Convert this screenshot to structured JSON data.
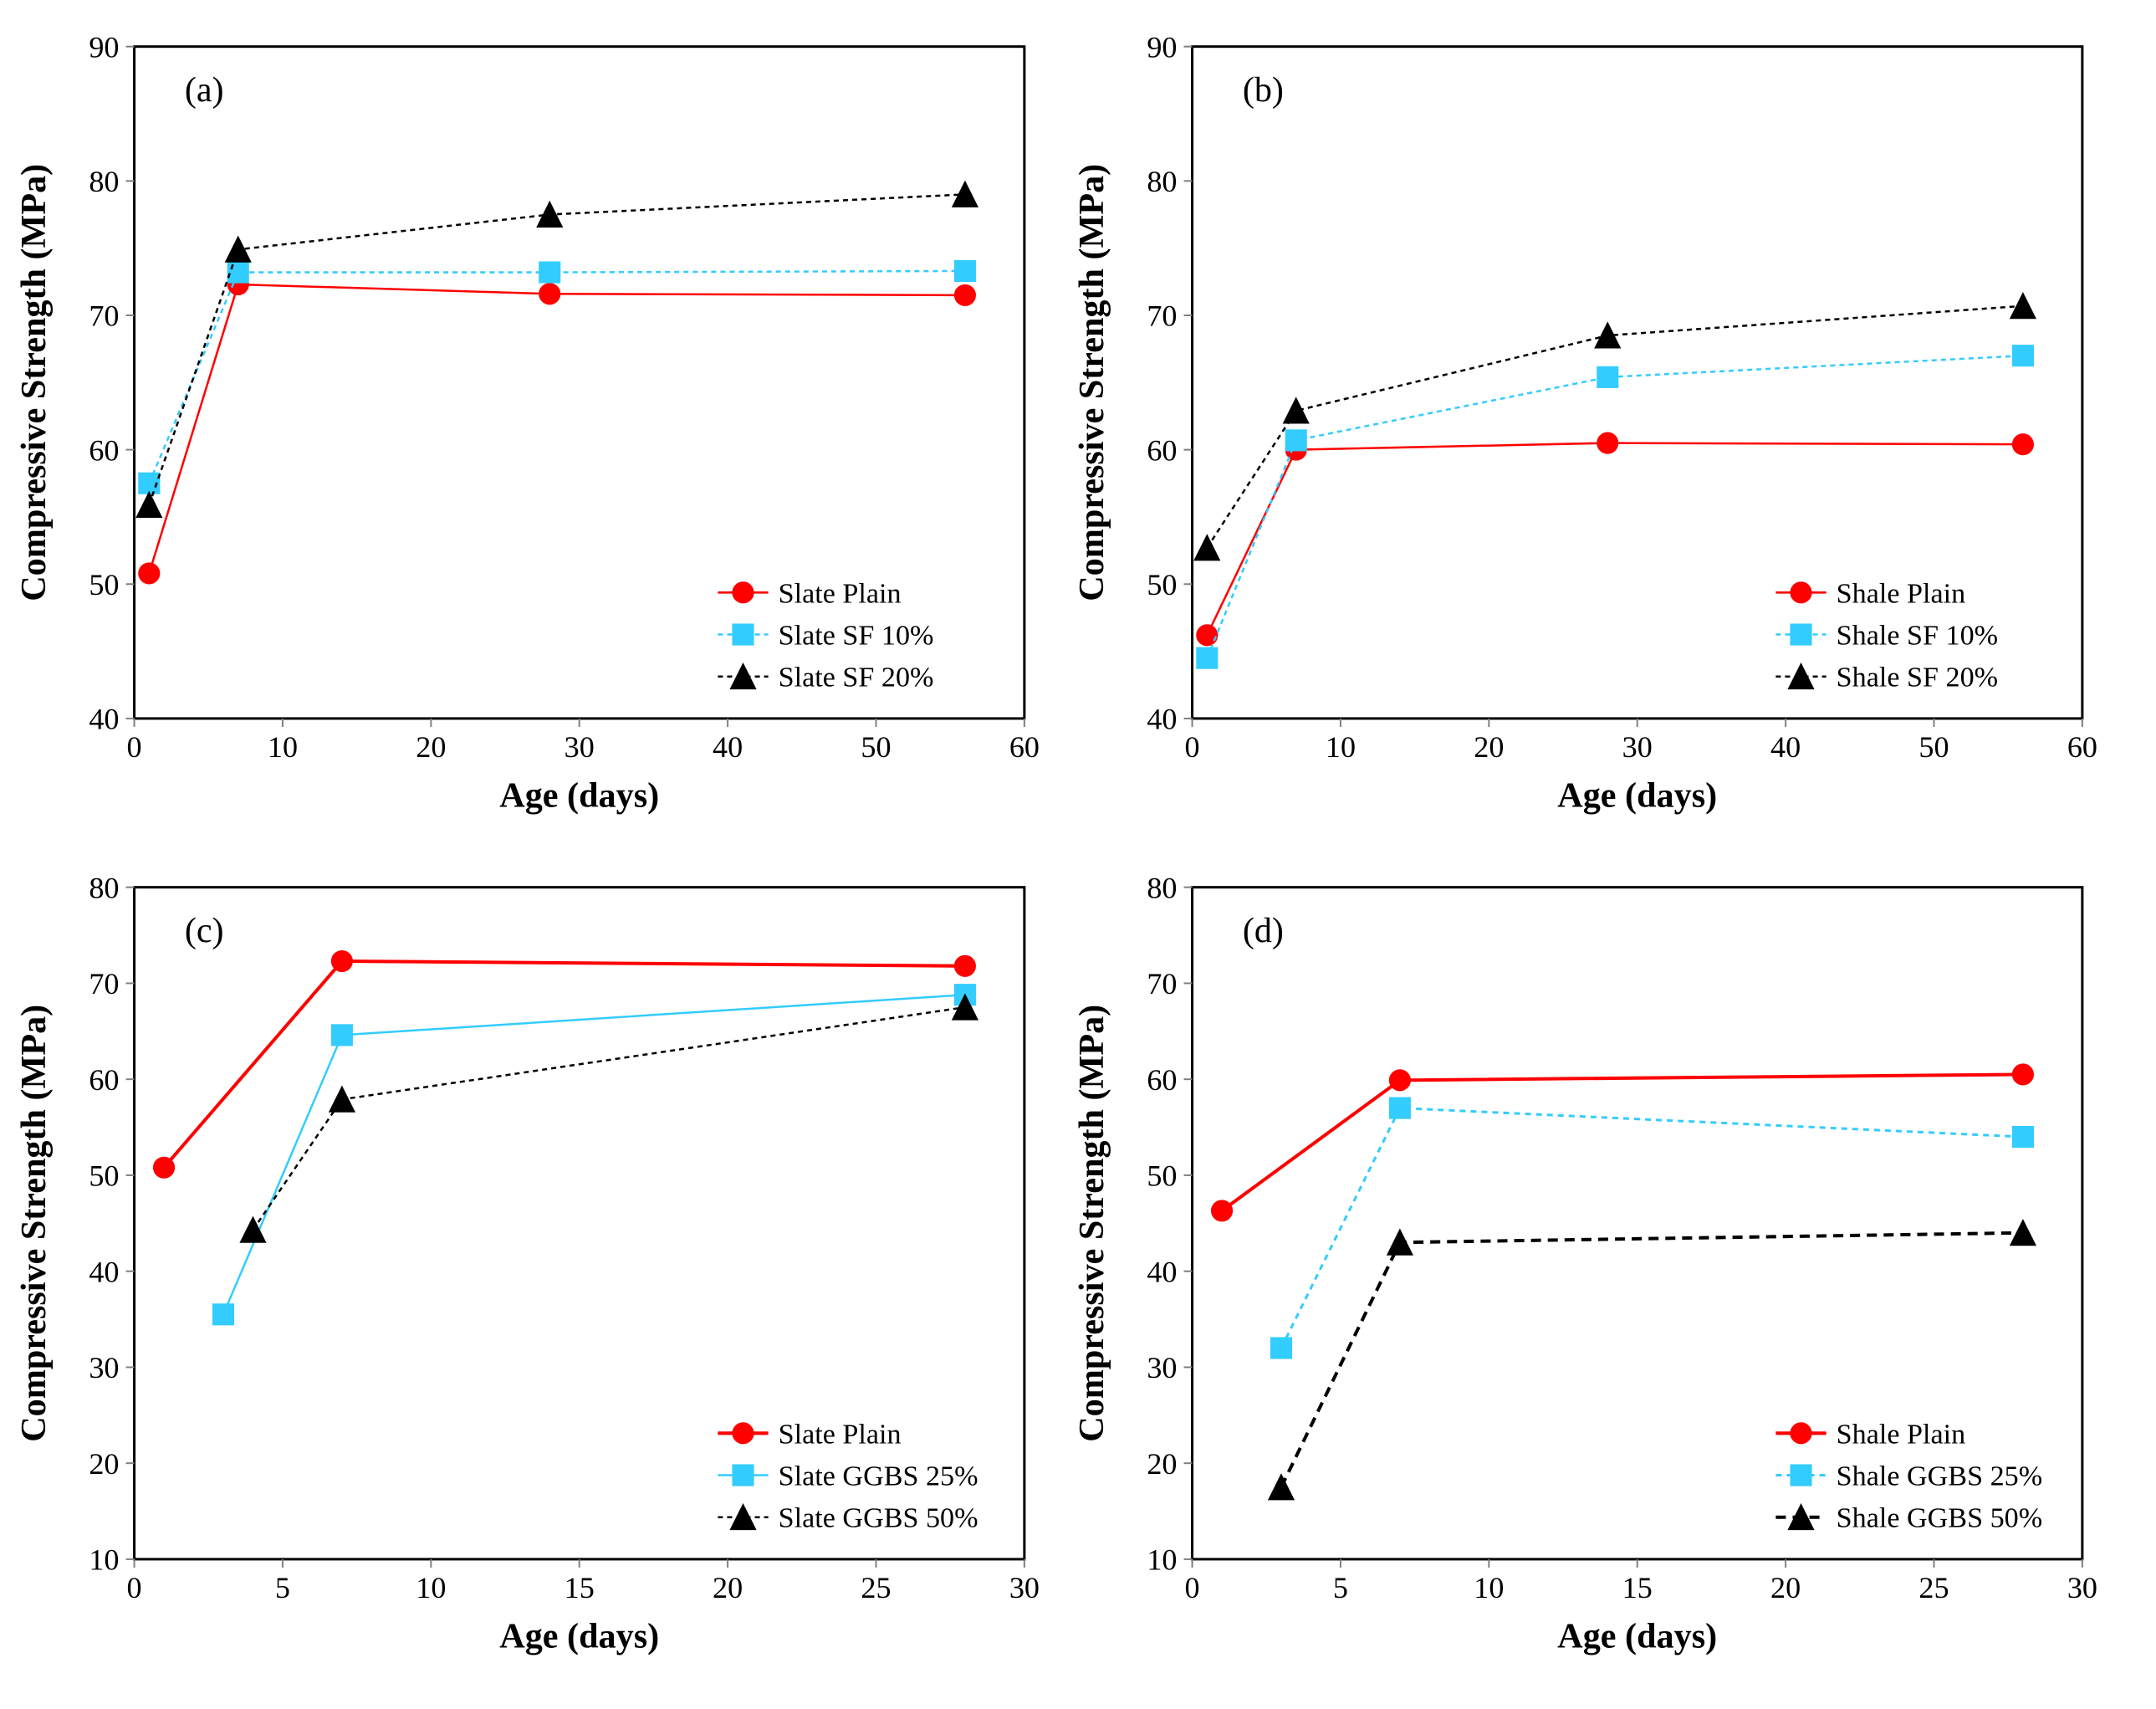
{
  "global": {
    "font_family": "Times New Roman",
    "axis_label_fontsize": 42,
    "axis_label_fontweight": "bold",
    "tick_fontsize": 36,
    "panel_label_fontsize": 42,
    "legend_fontsize": 34,
    "border_color": "#000000",
    "border_width": 3,
    "tick_color": "#808080",
    "tick_length": 10,
    "marker_size": 12,
    "line_width_thin": 2.5,
    "line_width_thick": 4
  },
  "colors": {
    "red": "#ff0000",
    "cyan": "#33ccff",
    "black": "#000000",
    "white": "#ffffff"
  },
  "panels": {
    "a": {
      "label": "(a)",
      "xlabel": "Age (days)",
      "ylabel": "Compressive Strength (MPa)",
      "xlim": [
        0,
        60
      ],
      "xtick_step": 10,
      "ylim": [
        40,
        90
      ],
      "ytick_step": 10,
      "legend_pos": "bottom-right",
      "series": [
        {
          "name": "Slate Plain",
          "color": "#ff0000",
          "marker": "circle",
          "fill": "#ff0000",
          "dash": "none",
          "line_width": 2.5,
          "x": [
            1,
            7,
            28,
            56
          ],
          "y": [
            50.8,
            72.3,
            71.6,
            71.5
          ]
        },
        {
          "name": "Slate SF 10%",
          "color": "#33ccff",
          "marker": "square",
          "fill": "#33ccff",
          "dash": "6,5",
          "line_width": 2.5,
          "x": [
            1,
            7,
            28,
            56
          ],
          "y": [
            57.5,
            73.2,
            73.2,
            73.3
          ]
        },
        {
          "name": "Slate SF 20%",
          "color": "#000000",
          "marker": "triangle",
          "fill": "#000000",
          "dash": "6,5",
          "line_width": 2.5,
          "x": [
            1,
            7,
            28,
            56
          ],
          "y": [
            55.9,
            74.9,
            77.5,
            79.0
          ]
        }
      ]
    },
    "b": {
      "label": "(b)",
      "xlabel": "Age (days)",
      "ylabel": "Compressive Strength (MPa)",
      "xlim": [
        0,
        60
      ],
      "xtick_step": 10,
      "ylim": [
        40,
        90
      ],
      "ytick_step": 10,
      "legend_pos": "bottom-right",
      "series": [
        {
          "name": "Shale Plain",
          "color": "#ff0000",
          "marker": "circle",
          "fill": "#ff0000",
          "dash": "none",
          "line_width": 2.5,
          "x": [
            1,
            7,
            28,
            56
          ],
          "y": [
            46.2,
            60.0,
            60.5,
            60.4
          ]
        },
        {
          "name": "Shale SF 10%",
          "color": "#33ccff",
          "marker": "square",
          "fill": "#33ccff",
          "dash": "6,5",
          "line_width": 2.5,
          "x": [
            1,
            7,
            28,
            56
          ],
          "y": [
            44.5,
            60.7,
            65.4,
            67.0
          ]
        },
        {
          "name": "Shale SF 20%",
          "color": "#000000",
          "marker": "triangle",
          "fill": "#000000",
          "dash": "6,5",
          "line_width": 2.5,
          "x": [
            1,
            7,
            28,
            56
          ],
          "y": [
            52.7,
            62.9,
            68.5,
            70.7
          ]
        }
      ]
    },
    "c": {
      "label": "(c)",
      "xlabel": "Age (days)",
      "ylabel": "Compressive Strength (MPa)",
      "xlim": [
        0,
        30
      ],
      "xtick_step": 5,
      "ylim": [
        10,
        80
      ],
      "ytick_step": 10,
      "legend_pos": "bottom-right",
      "series": [
        {
          "name": "Slate Plain",
          "color": "#ff0000",
          "marker": "circle",
          "fill": "#ff0000",
          "dash": "none",
          "line_width": 4,
          "x": [
            1,
            7,
            28
          ],
          "y": [
            50.8,
            72.3,
            71.8
          ]
        },
        {
          "name": "Slate GGBS 25%",
          "color": "#33ccff",
          "marker": "square",
          "fill": "#33ccff",
          "dash": "none",
          "line_width": 2.5,
          "x": [
            3,
            7,
            28
          ],
          "y": [
            35.5,
            64.6,
            68.8
          ]
        },
        {
          "name": "Slate GGBS 50%",
          "color": "#000000",
          "marker": "triangle",
          "fill": "#000000",
          "dash": "6,5",
          "line_width": 2.5,
          "x": [
            4,
            7,
            28
          ],
          "y": [
            44.3,
            57.9,
            67.5
          ]
        }
      ]
    },
    "d": {
      "label": "(d)",
      "xlabel": "Age (days)",
      "ylabel": "Compressive Strength (MPa)",
      "xlim": [
        0,
        30
      ],
      "xtick_step": 5,
      "ylim": [
        10,
        80
      ],
      "ytick_step": 10,
      "legend_pos": "bottom-right",
      "series": [
        {
          "name": "Shale Plain",
          "color": "#ff0000",
          "marker": "circle",
          "fill": "#ff0000",
          "dash": "none",
          "line_width": 4,
          "x": [
            1,
            7,
            28
          ],
          "y": [
            46.3,
            59.9,
            60.5
          ]
        },
        {
          "name": "Shale GGBS 25%",
          "color": "#33ccff",
          "marker": "square",
          "fill": "#33ccff",
          "dash": "7,6",
          "line_width": 3,
          "x": [
            3,
            7,
            28
          ],
          "y": [
            32.0,
            57.0,
            54.0
          ]
        },
        {
          "name": "Shale GGBS 50%",
          "color": "#000000",
          "marker": "triangle",
          "fill": "#000000",
          "dash": "12,8",
          "line_width": 4,
          "x": [
            3,
            7,
            28
          ],
          "y": [
            17.5,
            43.0,
            44.0
          ]
        }
      ]
    }
  }
}
